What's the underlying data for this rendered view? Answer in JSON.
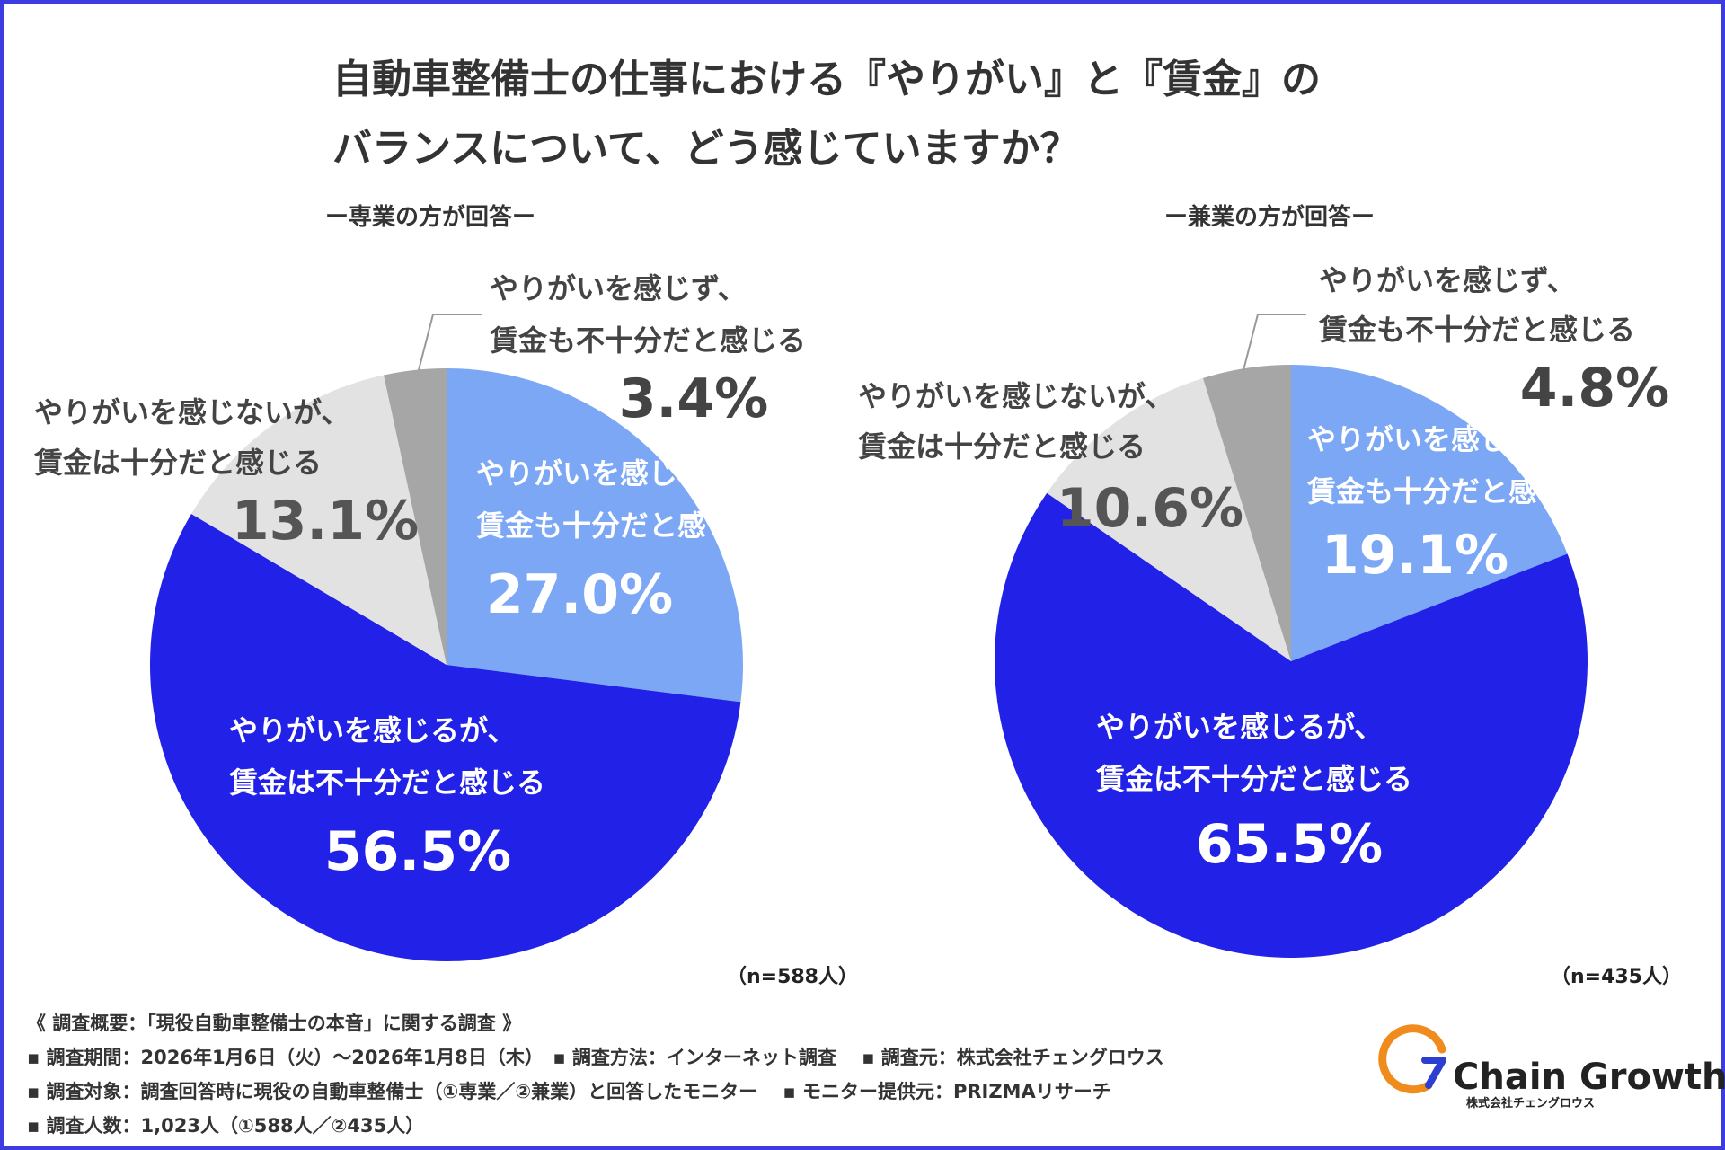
{
  "header": {
    "title_line1": "自動車整備士の仕事における『やりがい』と『賃金』の",
    "title_line2": "バランスについて、どう感じていますか？"
  },
  "chart_data": [
    {
      "type": "pie",
      "title": "ー専業の方が回答ー",
      "n_label": "（n=588人）",
      "slices": [
        {
          "name_line1": "やりがいを感じ、",
          "name_line2": "賃金も十分だと感じる",
          "value": 27.0,
          "label": "27.0%",
          "color": "#7ba7f5"
        },
        {
          "name_line1": "やりがいを感じるが、",
          "name_line2": "賃金は不十分だと感じる",
          "value": 56.5,
          "label": "56.5%",
          "color": "#2121e8"
        },
        {
          "name_line1": "やりがいを感じないが、",
          "name_line2": "賃金は十分だと感じる",
          "value": 13.1,
          "label": "13.1%",
          "color": "#e2e2e2"
        },
        {
          "name_line1": "やりがいを感じず、",
          "name_line2": "賃金も不十分だと感じる",
          "value": 3.4,
          "label": "3.4%",
          "color": "#a6a6a6"
        }
      ]
    },
    {
      "type": "pie",
      "title": "ー兼業の方が回答ー",
      "n_label": "（n=435人）",
      "slices": [
        {
          "name_line1": "やりがいを感じ、",
          "name_line2": "賃金も十分だと感じる",
          "value": 19.1,
          "label": "19.1%",
          "color": "#7ba7f5"
        },
        {
          "name_line1": "やりがいを感じるが、",
          "name_line2": "賃金は不十分だと感じる",
          "value": 65.5,
          "label": "65.5%",
          "color": "#2121e8"
        },
        {
          "name_line1": "やりがいを感じないが、",
          "name_line2": "賃金は十分だと感じる",
          "value": 10.6,
          "label": "10.6%",
          "color": "#e2e2e2"
        },
        {
          "name_line1": "やりがいを感じず、",
          "name_line2": "賃金も不十分だと感じる",
          "value": 4.8,
          "label": "4.8%",
          "color": "#a6a6a6"
        }
      ]
    }
  ],
  "footer": {
    "overview": "《 調査概要：「現役自動車整備士の本音」に関する調査 》",
    "line1": "▪ 調査期間：2026年1月6日（火）〜2026年1月8日（木）　▪ 調査方法：インターネット調査　 ▪ 調査元：株式会社チェングロウス",
    "line2": "▪ 調査対象：調査回答時に現役の自動車整備士（①専業／②兼業）と回答したモニター　 ▪ モニター提供元：PRIZMAリサーチ",
    "line3": "▪ 調査人数：1,023人（①588人／②435人）"
  },
  "logo": {
    "name": "Chain Growth",
    "sub": "株式会社チェングロウス",
    "icon": "chain-growth-logo-icon",
    "orange": "#f08c1e",
    "blue": "#2c3fd1"
  }
}
